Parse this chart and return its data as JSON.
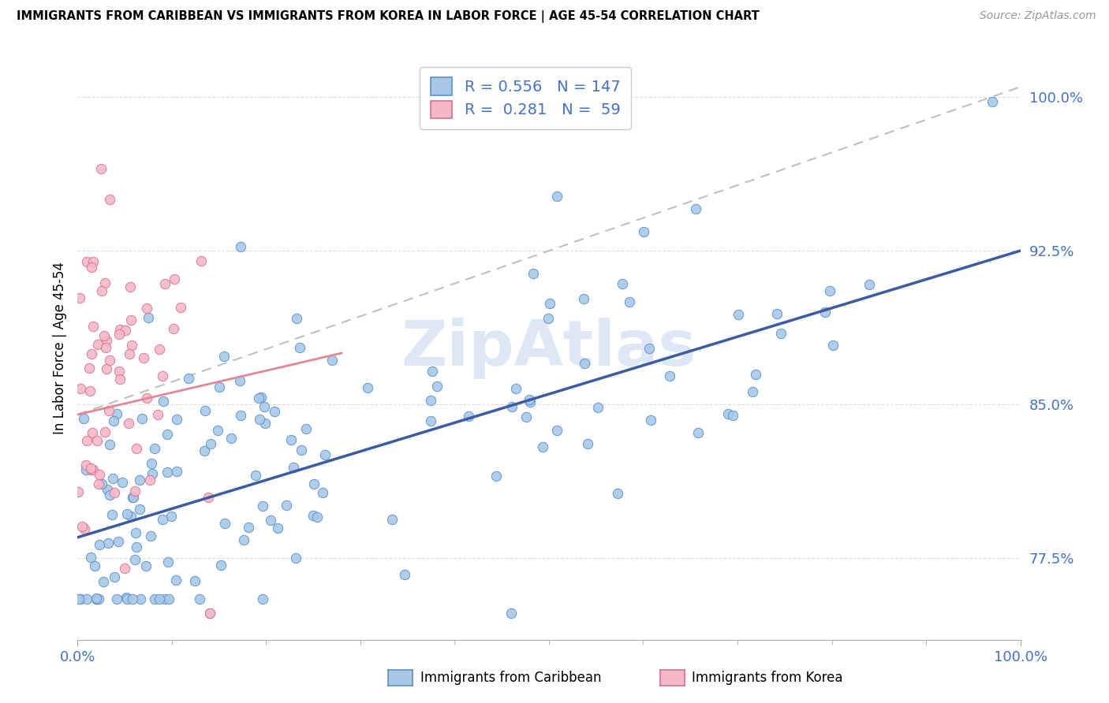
{
  "title": "IMMIGRANTS FROM CARIBBEAN VS IMMIGRANTS FROM KOREA IN LABOR FORCE | AGE 45-54 CORRELATION CHART",
  "source": "Source: ZipAtlas.com",
  "ylabel": "In Labor Force | Age 45-54",
  "xlim": [
    0.0,
    1.0
  ],
  "ylim": [
    0.735,
    1.02
  ],
  "yticks": [
    0.775,
    0.85,
    0.925,
    1.0
  ],
  "ytick_labels": [
    "77.5%",
    "85.0%",
    "92.5%",
    "100.0%"
  ],
  "blue_color": "#A8C8E8",
  "blue_edge": "#5B8FCC",
  "pink_color": "#F4B8C8",
  "pink_edge": "#D87090",
  "line_blue_color": "#3B5BA5",
  "line_pink_color": "#E08898",
  "line_dashed_color": "#C0C0C0",
  "text_color": "#4472C4",
  "grid_color": "#DDDDDD",
  "watermark": "ZipAtlas",
  "watermark_color": "#C8D8F0",
  "legend_r1": "R = 0.556",
  "legend_n1": "N = 147",
  "legend_r2": "R = 0.281",
  "legend_n2": "N =  59",
  "bottom_label1": "Immigrants from Caribbean",
  "bottom_label2": "Immigrants from Korea",
  "blue_trend": [
    0.0,
    1.0,
    0.785,
    0.925
  ],
  "pink_trend_solid": [
    0.0,
    0.28,
    0.845,
    0.875
  ],
  "pink_trend_dashed": [
    0.0,
    1.0,
    0.845,
    1.005
  ]
}
